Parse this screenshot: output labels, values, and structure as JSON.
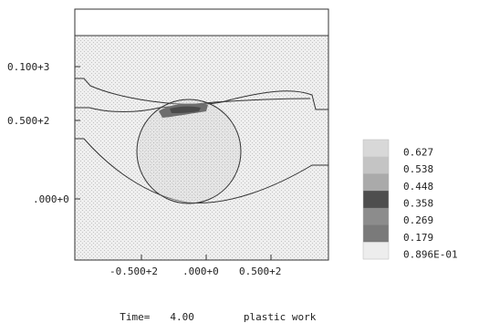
{
  "chart_data": {
    "type": "heatmap",
    "x_ticks": [
      "-0.500+2",
      ".000+0",
      "0.500+2"
    ],
    "y_ticks": [
      "0.100+3",
      "0.500+2",
      ".000+0"
    ],
    "legend_levels": [
      "0.627",
      "0.538",
      "0.448",
      "0.358",
      "0.269",
      "0.179",
      "0.896E-01"
    ],
    "legend_shades": [
      "#d8d8d8",
      "#c4c4c4",
      "#aaaaaa",
      "#4e4e4e",
      "#8c8c8c",
      "#7a7a7a",
      "#ededed"
    ],
    "colors": {
      "background_fill": "#efefef",
      "hatch": "#c8c8c8",
      "line": "#333333",
      "hot_zone": "#6e6e6e"
    }
  },
  "footer": {
    "time_label": "Time=",
    "time_value": "4.00",
    "variable": "plastic work"
  }
}
